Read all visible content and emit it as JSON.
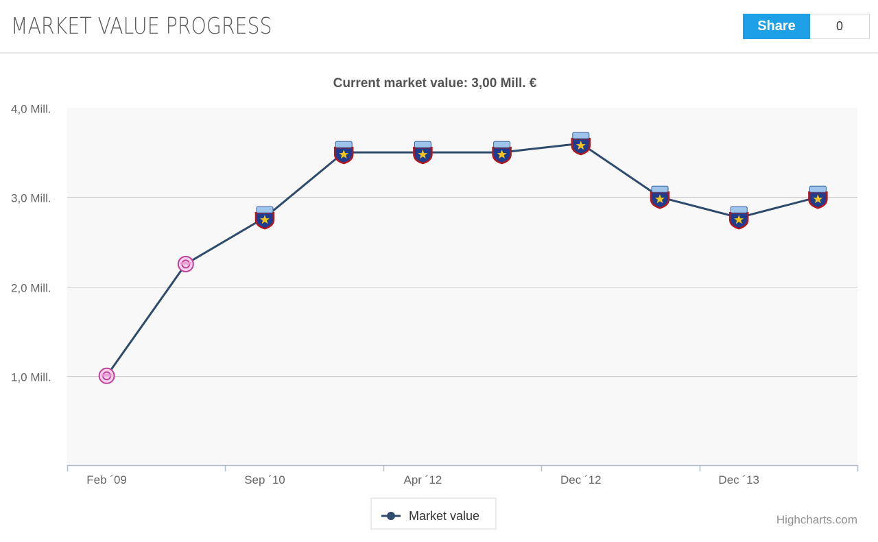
{
  "header": {
    "title": "MARKET VALUE PROGRESS",
    "share_label": "Share",
    "share_count": "0"
  },
  "colors": {
    "accent": "#1ea0e6",
    "series": "#2f4b6b",
    "plot_bg": "#f8f8f8",
    "grid": "#c8c8c8"
  },
  "chart_data": {
    "type": "line",
    "title": "Current market value: 3,00 Mill. €",
    "y_tick_labels": [
      "1,0 Mill.",
      "2,0 Mill.",
      "3,0 Mill.",
      "4,0 Mill."
    ],
    "y_ticks": [
      1.0,
      2.0,
      3.0,
      4.0
    ],
    "ylim": [
      0.0,
      4.0
    ],
    "x_labels": [
      "Feb ´09",
      "Sep ´10",
      "Apr ´12",
      "Dec ´12",
      "Dec ´13"
    ],
    "grid": true,
    "legend_position": "bottom-center",
    "credit": "Highcharts.com",
    "series": [
      {
        "name": "Market value",
        "points": [
          {
            "y": 1.0,
            "club": "pink"
          },
          {
            "y": 2.25,
            "club": "pink"
          },
          {
            "y": 2.77,
            "club": "steaua"
          },
          {
            "y": 3.5,
            "club": "steaua"
          },
          {
            "y": 3.5,
            "club": "steaua"
          },
          {
            "y": 3.5,
            "club": "steaua"
          },
          {
            "y": 3.6,
            "club": "steaua"
          },
          {
            "y": 3.0,
            "club": "steaua"
          },
          {
            "y": 2.77,
            "club": "steaua"
          },
          {
            "y": 3.0,
            "club": "steaua"
          }
        ]
      }
    ]
  }
}
